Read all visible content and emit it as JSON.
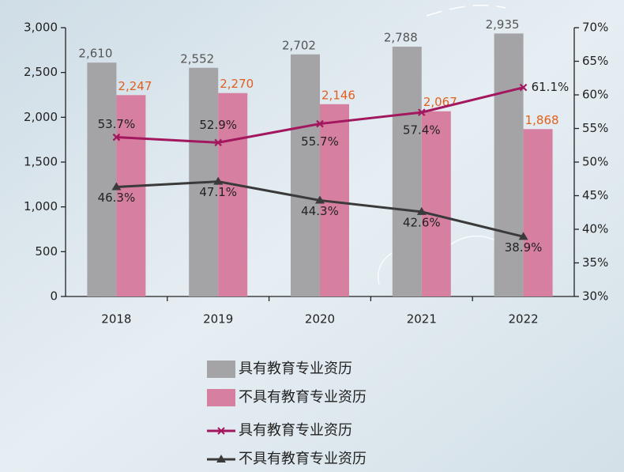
{
  "chart_data": {
    "type": "bar",
    "categories": [
      "2018",
      "2019",
      "2020",
      "2021",
      "2022"
    ],
    "series": [
      {
        "name": "具有教育专业资历",
        "type": "bar",
        "color": "#a4a4a7",
        "label_color": "#555555",
        "values": [
          2610,
          2552,
          2702,
          2788,
          2935
        ],
        "value_labels": [
          "2,610",
          "2,552",
          "2,702",
          "2,788",
          "2,935"
        ]
      },
      {
        "name": "不具有教育专业资历",
        "type": "bar",
        "color": "#d77fa1",
        "label_color": "#e0601f",
        "values": [
          2247,
          2270,
          2146,
          2067,
          1868
        ],
        "value_labels": [
          "2,247",
          "2,270",
          "2,146",
          "2,067",
          "1,868"
        ]
      },
      {
        "name": "具有教育专业资历",
        "type": "line",
        "axis": "y2",
        "color": "#a3175f",
        "marker": "x",
        "label_color": "#222222",
        "values": [
          53.7,
          52.9,
          55.7,
          57.4,
          61.1
        ],
        "value_labels": [
          "53.7%",
          "52.9%",
          "55.7%",
          "57.4%",
          "61.1%"
        ]
      },
      {
        "name": "不具有教育专业资历",
        "type": "line",
        "axis": "y2",
        "color": "#3a3a3a",
        "marker": "triangle",
        "label_color": "#222222",
        "values": [
          46.3,
          47.1,
          44.3,
          42.6,
          38.9
        ],
        "value_labels": [
          "46.3%",
          "47.1%",
          "44.3%",
          "42.6%",
          "38.9%"
        ]
      }
    ],
    "ylim": [
      0,
      3000
    ],
    "yticks": [
      0,
      500,
      {
        "value": 1000,
        "label": "1,000"
      },
      {
        "value": 1500,
        "label": "1,500"
      },
      {
        "value": 2000,
        "label": "2,000"
      },
      {
        "value": 2500,
        "label": "2,500"
      },
      {
        "value": 3000,
        "label": "3,000"
      }
    ],
    "y2lim": [
      30,
      70
    ],
    "y2ticks": [
      {
        "value": 30,
        "label": "30%"
      },
      {
        "value": 35,
        "label": "35%"
      },
      {
        "value": 40,
        "label": "40%"
      },
      {
        "value": 45,
        "label": "45%"
      },
      {
        "value": 50,
        "label": "50%"
      },
      {
        "value": 55,
        "label": "55%"
      },
      {
        "value": 60,
        "label": "60%"
      },
      {
        "value": 65,
        "label": "65%"
      },
      {
        "value": 70,
        "label": "70%"
      }
    ],
    "grid": false,
    "legend": "bottom"
  }
}
